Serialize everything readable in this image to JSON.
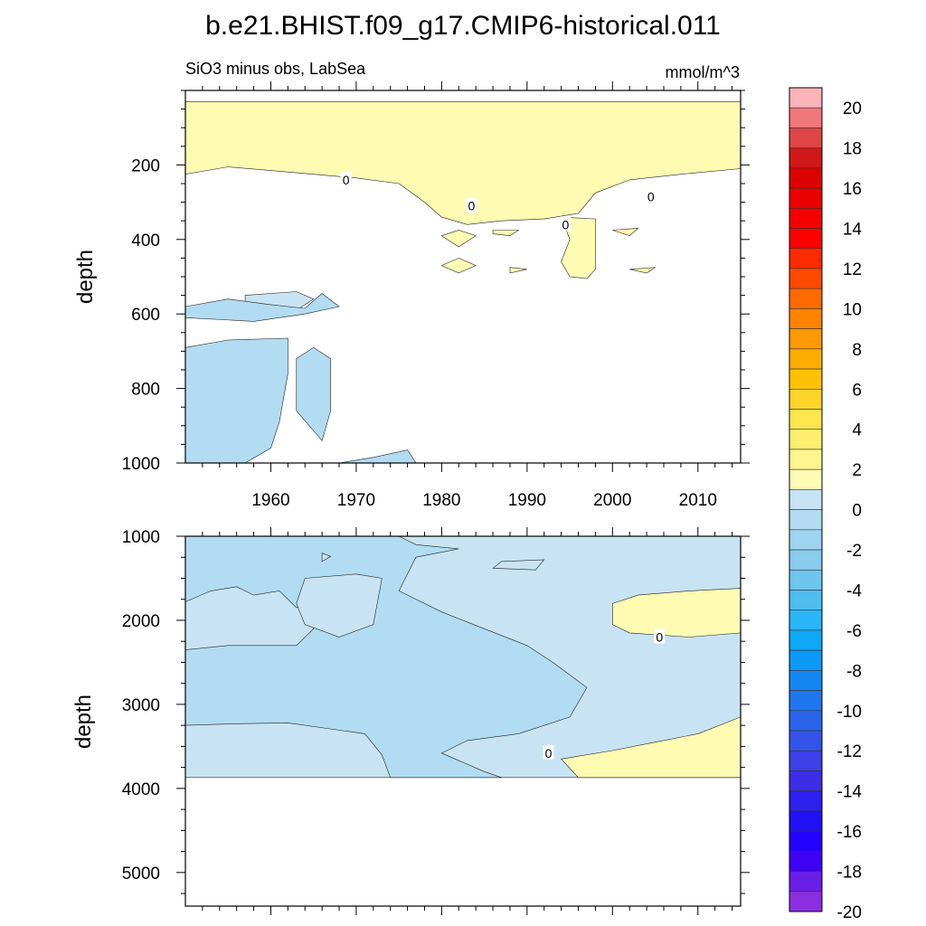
{
  "figure": {
    "title": "b.e21.BHIST.f09_g17.CMIP6-historical.011"
  },
  "colors": {
    "pos_0_2": "#fefbb3",
    "pos_2_4": "#fbe65b",
    "neg_0_2": "#c8e4f4",
    "neg_2_4": "#b2dcf2",
    "empty": "#ffffff"
  },
  "chart_data": [
    {
      "type": "contour",
      "panel": "upper",
      "left_label": "SiO3 minus obs, LabSea",
      "right_label": "mmol/m^3",
      "ylabel": "depth",
      "xlabel": "",
      "xlim": [
        1950,
        2015
      ],
      "ylim": [
        1000,
        0
      ],
      "x_ticks": [
        1960,
        1970,
        1980,
        1990,
        2000,
        2010
      ],
      "x_tick_labels": [
        "1960",
        "1970",
        "1980",
        "1990",
        "2000",
        "2010"
      ],
      "y_ticks": [
        200,
        400,
        600,
        800,
        1000
      ],
      "y_tick_labels": [
        "200",
        "400",
        "600",
        "800",
        "1000"
      ],
      "contour_labels": [
        {
          "text": "0",
          "x": 1968.8,
          "y": 240
        },
        {
          "text": "0",
          "x": 1983.5,
          "y": 310
        },
        {
          "text": "0",
          "x": 1994.5,
          "y": 360
        },
        {
          "text": "0",
          "x": 2004.5,
          "y": 285
        }
      ],
      "regions": [
        {
          "level": "pos_0_2",
          "points": [
            [
              1950,
              30
            ],
            [
              2015,
              30
            ],
            [
              2015,
              210
            ],
            [
              2008,
              225
            ],
            [
              2002,
              240
            ],
            [
              1998,
              275
            ],
            [
              1996,
              330
            ],
            [
              1992,
              345
            ],
            [
              1987,
              350
            ],
            [
              1983,
              360
            ],
            [
              1980,
              340
            ],
            [
              1978,
              300
            ],
            [
              1975,
              250
            ],
            [
              1970,
              235
            ],
            [
              1965,
              225
            ],
            [
              1960,
              215
            ],
            [
              1955,
              205
            ],
            [
              1950,
              225
            ]
          ]
        },
        {
          "level": "pos_0_2",
          "points": [
            [
              1982,
              375
            ],
            [
              1984,
              390
            ],
            [
              1982,
              420
            ],
            [
              1980,
              390
            ]
          ]
        },
        {
          "level": "pos_0_2",
          "points": [
            [
              1994,
              340
            ],
            [
              1998,
              345
            ],
            [
              1998,
              480
            ],
            [
              1997,
              505
            ],
            [
              1995,
              500
            ],
            [
              1994,
              460
            ],
            [
              1995,
              400
            ]
          ]
        },
        {
          "level": "pos_0_2",
          "points": [
            [
              1980,
              470
            ],
            [
              1982,
              450
            ],
            [
              1984,
              470
            ],
            [
              1982,
              490
            ]
          ]
        },
        {
          "level": "pos_0_2",
          "points": [
            [
              1986,
              375
            ],
            [
              1989,
              375
            ],
            [
              1988,
              390
            ],
            [
              1986,
              385
            ]
          ]
        },
        {
          "level": "pos_0_2",
          "points": [
            [
              2000,
              375
            ],
            [
              2003,
              370
            ],
            [
              2002,
              390
            ]
          ]
        },
        {
          "level": "pos_0_2",
          "points": [
            [
              2002,
              480
            ],
            [
              2005,
              475
            ],
            [
              2004,
              490
            ]
          ]
        },
        {
          "level": "pos_0_2",
          "points": [
            [
              1988,
              475
            ],
            [
              1990,
              480
            ],
            [
              1988,
              490
            ]
          ]
        },
        {
          "level": "neg_0_2",
          "points": [
            [
              1957,
              550
            ],
            [
              1963,
              540
            ],
            [
              1965,
              560
            ],
            [
              1963,
              590
            ],
            [
              1957,
              600
            ]
          ]
        },
        {
          "level": "neg_2_4",
          "points": [
            [
              1950,
              580
            ],
            [
              1955,
              560
            ],
            [
              1960,
              575
            ],
            [
              1964,
              585
            ],
            [
              1966,
              545
            ],
            [
              1968,
              580
            ],
            [
              1964,
              600
            ],
            [
              1958,
              620
            ],
            [
              1950,
              610
            ]
          ]
        },
        {
          "level": "neg_2_4",
          "points": [
            [
              1950,
              690
            ],
            [
              1955,
              670
            ],
            [
              1962,
              665
            ],
            [
              1962,
              760
            ],
            [
              1961,
              890
            ],
            [
              1960,
              960
            ],
            [
              1957,
              1000
            ],
            [
              1950,
              1000
            ]
          ]
        },
        {
          "level": "neg_2_4",
          "points": [
            [
              1963,
              720
            ],
            [
              1965,
              690
            ],
            [
              1967,
              720
            ],
            [
              1967,
              860
            ],
            [
              1966,
              940
            ],
            [
              1963,
              860
            ]
          ]
        },
        {
          "level": "neg_2_4",
          "points": [
            [
              1968,
              1000
            ],
            [
              1972,
              985
            ],
            [
              1976,
              965
            ],
            [
              1977,
              1000
            ]
          ]
        }
      ]
    },
    {
      "type": "contour",
      "panel": "lower",
      "left_label": "",
      "right_label": "",
      "ylabel": "depth",
      "xlabel": "",
      "xlim": [
        1950,
        2015
      ],
      "ylim": [
        5400,
        1000
      ],
      "data_bottom": 3870,
      "x_ticks": [
        1960,
        1970,
        1980,
        1990,
        2000,
        2010
      ],
      "x_tick_labels": [
        "",
        "",
        "",
        "",
        "",
        ""
      ],
      "y_ticks": [
        1000,
        2000,
        3000,
        4000,
        5000
      ],
      "y_tick_labels": [
        "1000",
        "2000",
        "3000",
        "4000",
        "5000"
      ],
      "contour_labels": [
        {
          "text": "0",
          "x": 2005.5,
          "y": 2200
        },
        {
          "text": "0",
          "x": 1992.5,
          "y": 3580
        }
      ],
      "regions": [
        {
          "level": "neg_0_2",
          "points": [
            [
              1950,
              1000
            ],
            [
              2015,
              1000
            ],
            [
              2015,
              3870
            ],
            [
              1950,
              3870
            ]
          ]
        },
        {
          "level": "neg_2_4",
          "points": [
            [
              1950,
              1000
            ],
            [
              1975,
              1000
            ],
            [
              1977,
              1100
            ],
            [
              1982,
              1150
            ],
            [
              1977,
              1250
            ],
            [
              1975,
              1650
            ],
            [
              1980,
              1900
            ],
            [
              1985,
              2100
            ],
            [
              1990,
              2300
            ],
            [
              1993,
              2500
            ],
            [
              1997,
              2800
            ],
            [
              1995,
              3150
            ],
            [
              1989,
              3350
            ],
            [
              1983,
              3430
            ],
            [
              1980,
              3580
            ],
            [
              1985,
              3800
            ],
            [
              1987,
              3870
            ],
            [
              1974,
              3870
            ],
            [
              1973,
              3600
            ],
            [
              1971,
              3350
            ],
            [
              1962,
              3220
            ],
            [
              1956,
              3230
            ],
            [
              1950,
              3250
            ]
          ]
        },
        {
          "level": "neg_0_2",
          "points": [
            [
              1950,
              1780
            ],
            [
              1953,
              1650
            ],
            [
              1956,
              1600
            ],
            [
              1958,
              1700
            ],
            [
              1961,
              1650
            ],
            [
              1963,
              1850
            ],
            [
              1966,
              1750
            ],
            [
              1965,
              2100
            ],
            [
              1963,
              2300
            ],
            [
              1955,
              2300
            ],
            [
              1950,
              2350
            ]
          ]
        },
        {
          "level": "neg_0_2",
          "points": [
            [
              1964,
              1500
            ],
            [
              1970,
              1450
            ],
            [
              1973,
              1500
            ],
            [
              1972,
              2050
            ],
            [
              1968,
              2200
            ],
            [
              1964,
              2050
            ],
            [
              1963,
              1800
            ]
          ]
        },
        {
          "level": "neg_0_2",
          "points": [
            [
              1966,
              1300
            ],
            [
              1967,
              1240
            ],
            [
              1966,
              1200
            ]
          ]
        },
        {
          "level": "neg_0_2",
          "points": [
            [
              1987,
              1300
            ],
            [
              1992,
              1280
            ],
            [
              1991,
              1400
            ],
            [
              1986,
              1380
            ]
          ]
        },
        {
          "level": "pos_0_2",
          "points": [
            [
              2000,
              1800
            ],
            [
              2003,
              1700
            ],
            [
              2009,
              1650
            ],
            [
              2015,
              1620
            ],
            [
              2015,
              2150
            ],
            [
              2009,
              2200
            ],
            [
              2002,
              2150
            ],
            [
              2000,
              2050
            ]
          ]
        },
        {
          "level": "pos_0_2",
          "points": [
            [
              1994,
              3650
            ],
            [
              2000,
              3550
            ],
            [
              2005,
              3450
            ],
            [
              2010,
              3350
            ],
            [
              2015,
              3150
            ],
            [
              2015,
              3870
            ],
            [
              1996,
              3870
            ]
          ]
        }
      ]
    }
  ],
  "colorbar": {
    "labels": [
      "20",
      "18",
      "16",
      "14",
      "12",
      "10",
      "8",
      "6",
      "4",
      "2",
      "0",
      "-2",
      "-4",
      "-6",
      "-8",
      "-10",
      "-12",
      "-14",
      "-16",
      "-18",
      "-20"
    ],
    "colors": [
      "#fbb4b9",
      "#f0787c",
      "#e04545",
      "#d01818",
      "#dc0000",
      "#ea0000",
      "#f40000",
      "#fe0000",
      "#ff2a00",
      "#ff4a00",
      "#ff6a00",
      "#fe8400",
      "#fe9900",
      "#fead00",
      "#fec200",
      "#fcd42a",
      "#fde64e",
      "#fdee70",
      "#fef58e",
      "#fefbb3",
      "#c8e4f4",
      "#b3dcf2",
      "#9ed4f0",
      "#88ccee",
      "#6ec5ee",
      "#4fbef0",
      "#28b6f6",
      "#0ea8f6",
      "#0c98f6",
      "#1487f2",
      "#1f76ee",
      "#2a64ea",
      "#3453e8",
      "#3c40e6",
      "#3c2ee6",
      "#2c20ef",
      "#2010f6",
      "#2400ff",
      "#4000f2",
      "#6a1fe8",
      "#8a2ee0"
    ]
  }
}
